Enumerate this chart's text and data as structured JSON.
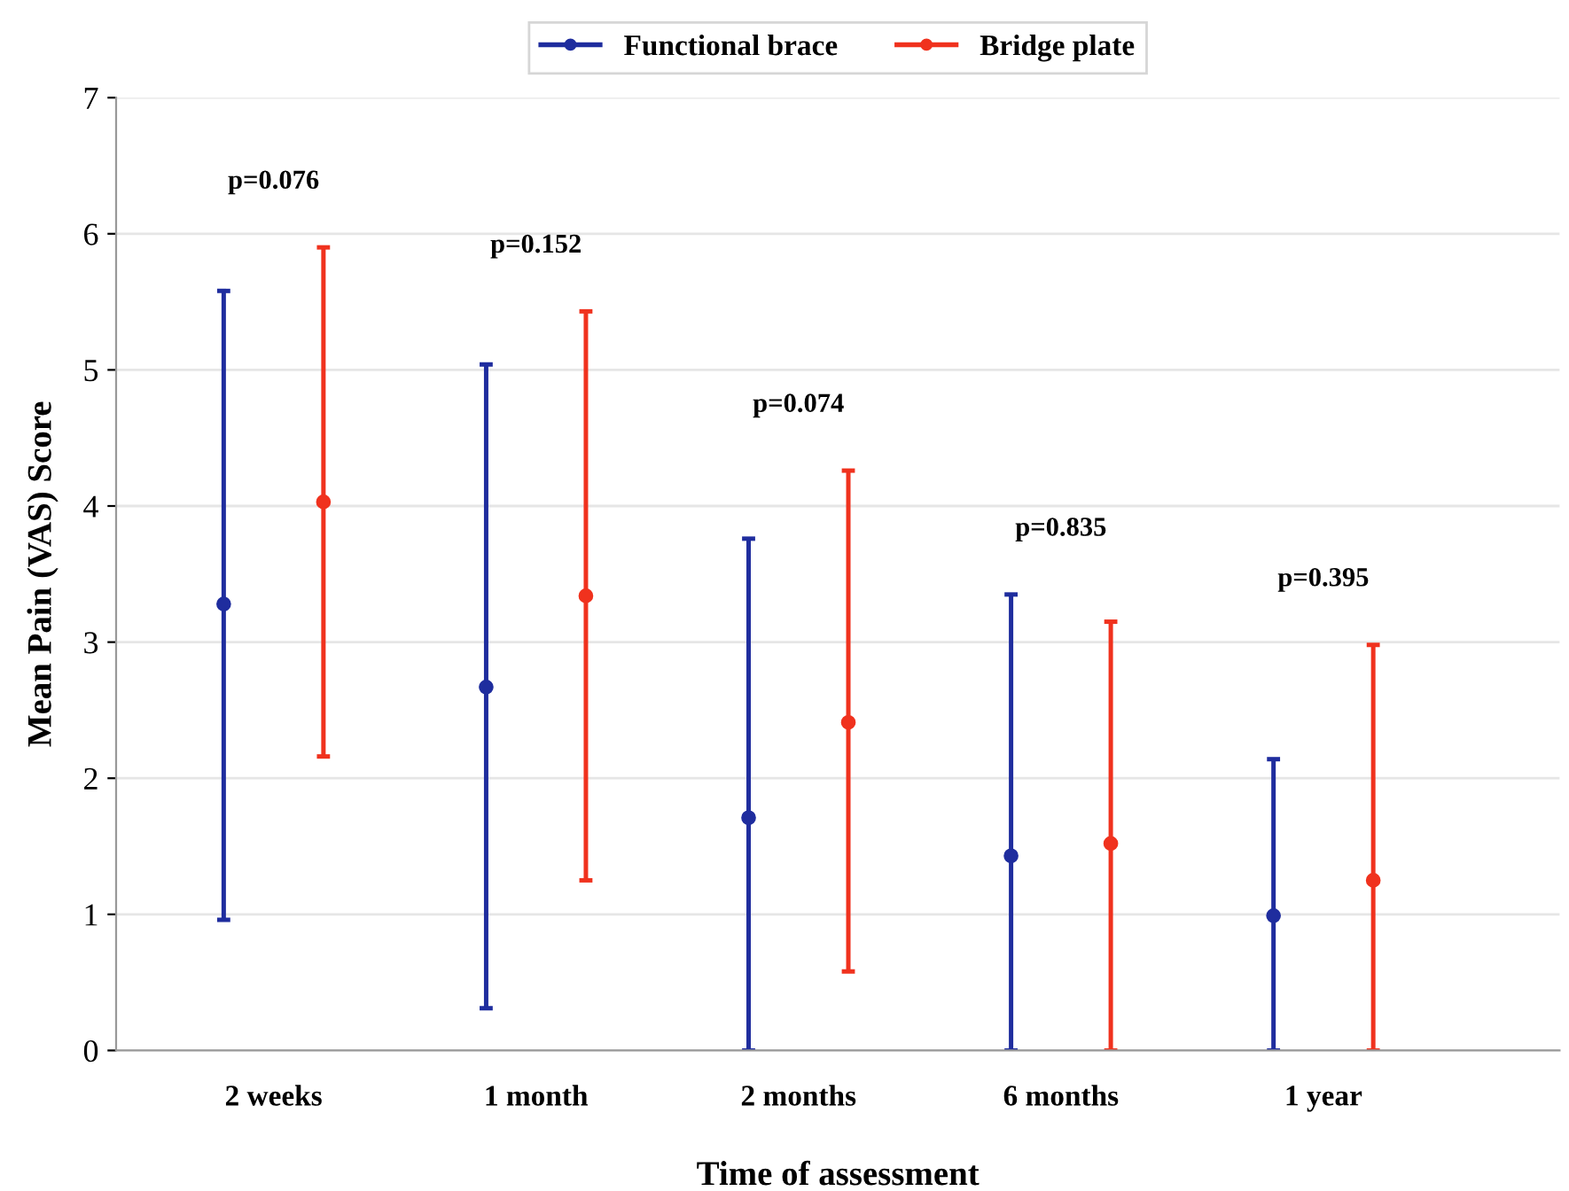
{
  "chart_data": {
    "type": "scatter",
    "xlabel": "Time of assessment",
    "ylabel": "Mean Pain (VAS) Score",
    "categories": [
      "2 weeks",
      "1 month",
      "2 months",
      "6 months",
      "1 year"
    ],
    "series": [
      {
        "name": "Functional brace",
        "color": "#1f2d9e",
        "values": [
          3.28,
          2.67,
          1.71,
          1.43,
          0.99
        ],
        "errors": [
          [
            0.96,
            5.58
          ],
          [
            0.31,
            5.04
          ],
          [
            0,
            3.76
          ],
          [
            0,
            3.35
          ],
          [
            0,
            2.14
          ]
        ]
      },
      {
        "name": "Bridge plate",
        "color": "#f0321e",
        "values": [
          4.03,
          3.34,
          2.41,
          1.52,
          1.25
        ],
        "errors": [
          [
            2.16,
            5.9
          ],
          [
            1.25,
            5.43
          ],
          [
            0.58,
            4.26
          ],
          [
            0,
            3.15
          ],
          [
            0,
            2.98
          ]
        ]
      }
    ],
    "annotations": [
      "p=0.076",
      "p=0.152",
      "p=0.074",
      "p=0.835",
      "p=0.395"
    ],
    "ylim": [
      0,
      7
    ],
    "yticks": [
      0,
      1,
      2,
      3,
      4,
      5,
      6,
      7
    ],
    "grid": "y",
    "legend": "top",
    "marker": "circle"
  }
}
